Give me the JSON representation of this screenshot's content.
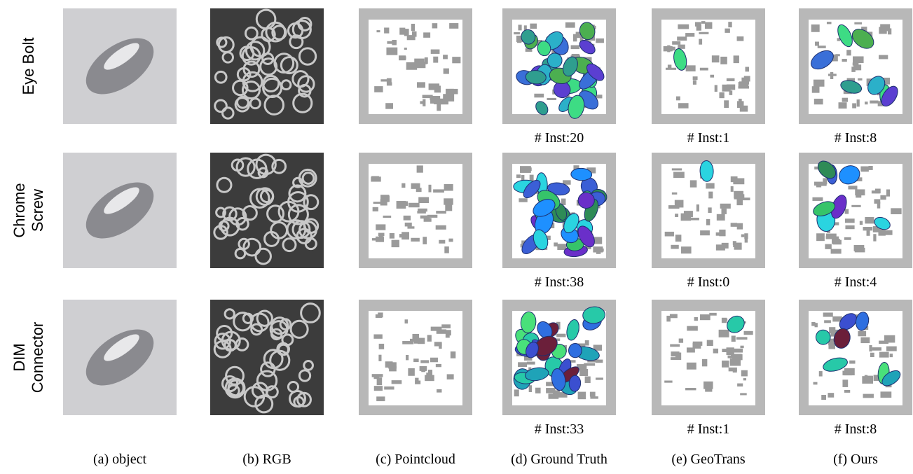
{
  "rows": [
    {
      "label": [
        "Eye Bolt"
      ],
      "inst": [
        "# Inst:20",
        "# Inst:1",
        "# Inst:8"
      ]
    },
    {
      "label": [
        "Chrome",
        "Screw"
      ],
      "inst": [
        "# Inst:38",
        "# Inst:0",
        "# Inst:4"
      ]
    },
    {
      "label": [
        "DIM",
        "Connector"
      ],
      "inst": [
        "# Inst:33",
        "# Inst:1",
        "# Inst:8"
      ]
    }
  ],
  "columns": [
    "(a) object",
    "(b) RGB",
    "(c) Pointcloud",
    "(d) Ground Truth",
    "(e) GeoTrans",
    "(f) Ours"
  ]
}
